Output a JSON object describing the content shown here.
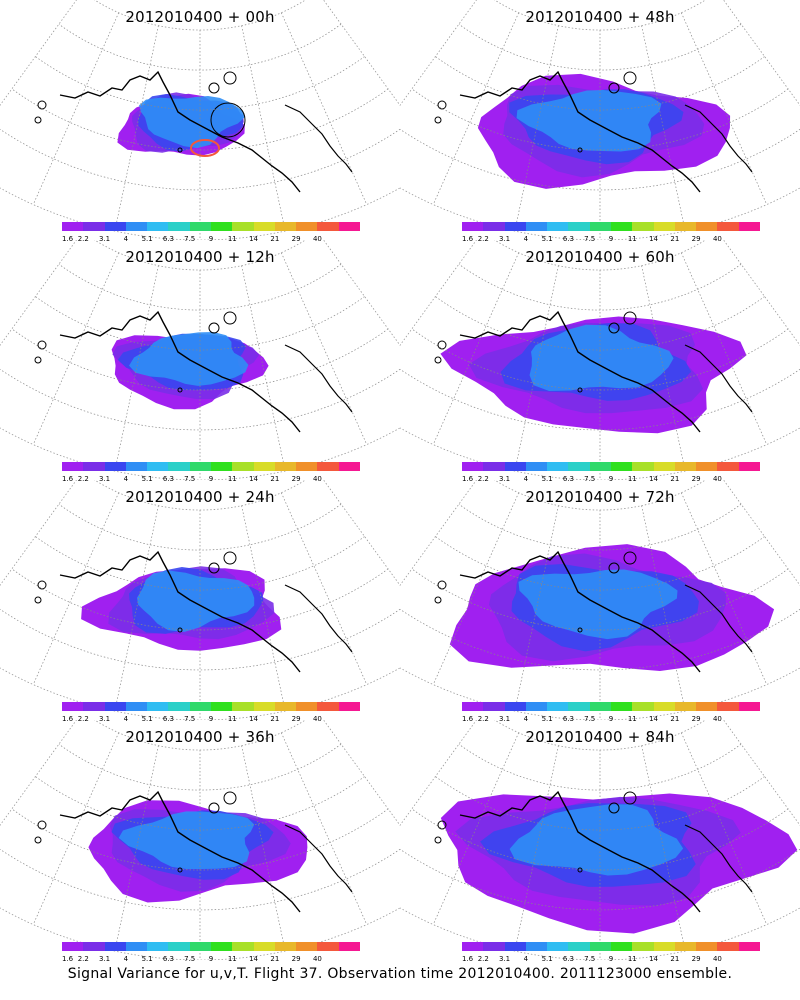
{
  "footer": "Signal Variance for u,v,T. Flight 37. Observation time 2012010400. 2011123000 ensemble.",
  "colorbar": {
    "labels": [
      "1.6",
      "2.2",
      "3.1",
      "4",
      "5.1",
      "6.3",
      "7.5",
      "9",
      "11",
      "14",
      "21",
      "29",
      "40"
    ],
    "colors": [
      "#a020f0",
      "#7a2ee8",
      "#3a46f0",
      "#2f8ef5",
      "#2fbdf2",
      "#2ad0c8",
      "#2fd96a",
      "#2fe01e",
      "#a8e028",
      "#d8dc28",
      "#e8b82a",
      "#f0902a",
      "#f4583c",
      "#f51892"
    ]
  },
  "panels": [
    {
      "title": "2012010400 + 00h",
      "extent": 0.0
    },
    {
      "title": "2012010400 + 48h",
      "extent": 0.6
    },
    {
      "title": "2012010400 + 12h",
      "extent": 0.15
    },
    {
      "title": "2012010400 + 60h",
      "extent": 0.72
    },
    {
      "title": "2012010400 + 24h",
      "extent": 0.3
    },
    {
      "title": "2012010400 + 72h",
      "extent": 0.85
    },
    {
      "title": "2012010400 + 36h",
      "extent": 0.45
    },
    {
      "title": "2012010400 + 84h",
      "extent": 1.0
    }
  ]
}
